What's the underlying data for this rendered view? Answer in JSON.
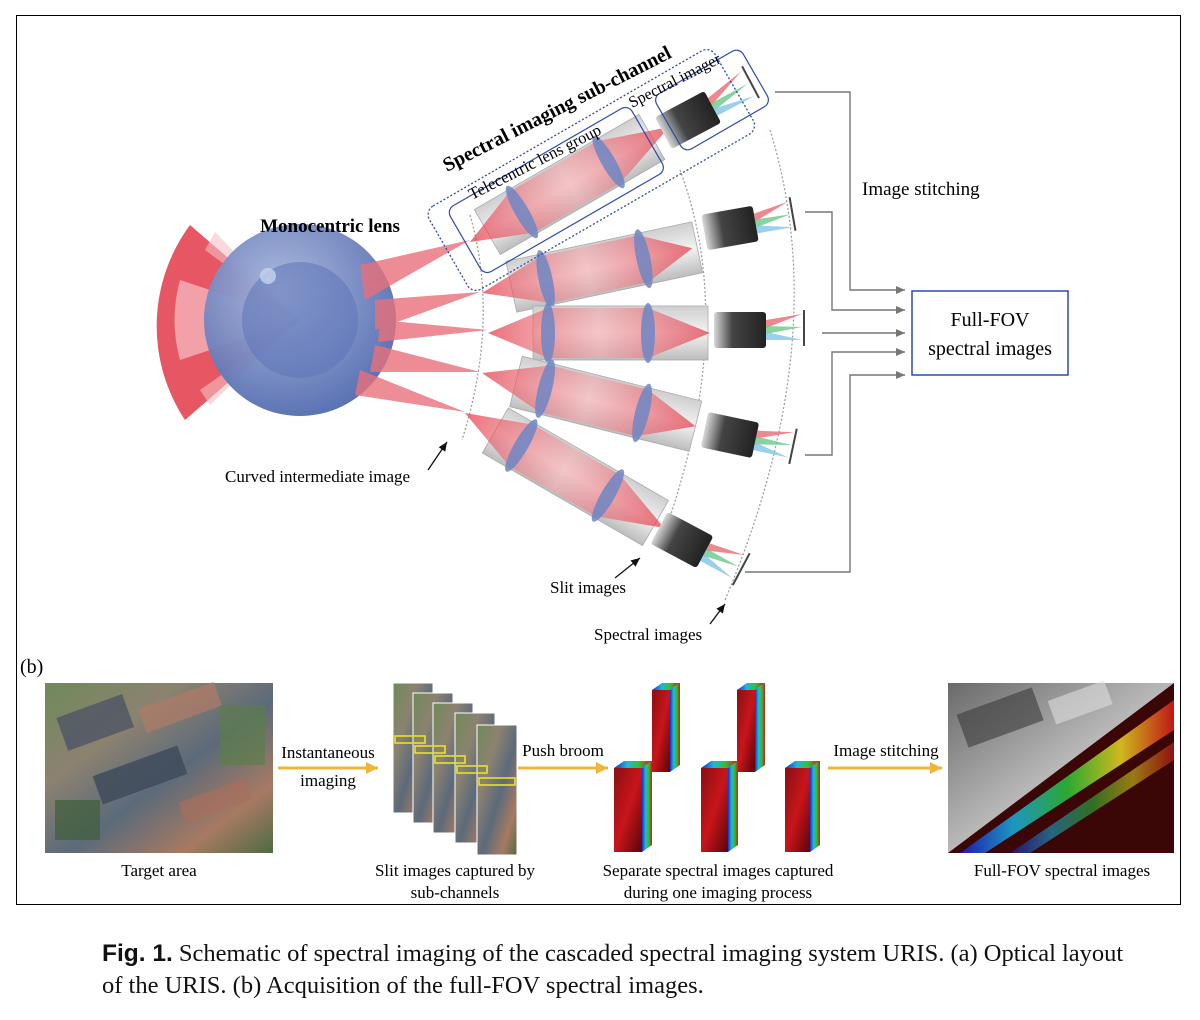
{
  "panel_a": {
    "title_subchannel": "Spectral imaging sub-channel",
    "label_telecentric": "Telecentric lens group",
    "label_spectral_imager": "Spectral imager",
    "label_monocentric": "Monocentric lens",
    "label_image_stitching": "Image stitching",
    "label_full_fov_line1": "Full-FOV",
    "label_full_fov_line2": "spectral images",
    "label_curved_intermediate": "Curved intermediate image",
    "label_slit_images": "Slit images",
    "label_spectral_images": "Spectral images"
  },
  "panel_b": {
    "panel_label": "(b)",
    "caption_target": "Target area",
    "arrow1_line1": "Instantaneous",
    "arrow1_line2": "imaging",
    "caption_slit_line1": "Slit images captured by",
    "caption_slit_line2": "sub-channels",
    "arrow2": "Push broom",
    "caption_separate_line1": "Separate spectral images captured",
    "caption_separate_line2": "during one imaging process",
    "arrow3": "Image stitching",
    "caption_fullfov": "Full-FOV spectral images"
  },
  "caption": {
    "label": "Fig. 1.",
    "text": "Schematic of spectral imaging of the cascaded spectral imaging system URIS. (a) Optical layout of the URIS. (b) Acquisition of the full-FOV spectral images."
  },
  "colors": {
    "ray_red": "#e23a48",
    "lens_blue": "#6e86c4",
    "box_blue": "#2c4ab0",
    "arrow_orange": "#f0b53a",
    "line_gray": "#777777"
  }
}
